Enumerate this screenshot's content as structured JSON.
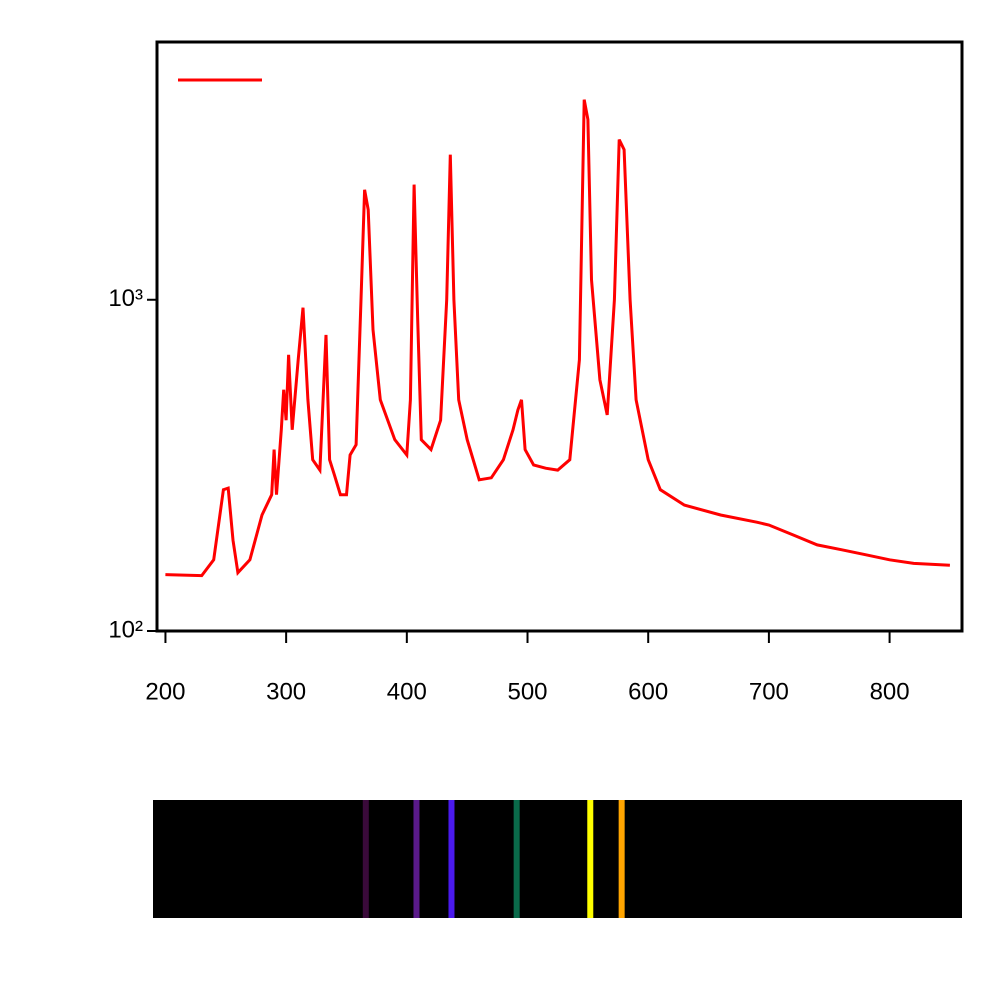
{
  "chart_data": {
    "type": "line",
    "x": [
      200,
      230,
      240,
      248,
      252,
      256,
      260,
      270,
      280,
      288,
      290,
      292,
      296,
      298,
      300,
      302,
      305,
      310,
      314,
      318,
      322,
      328,
      333,
      336,
      340,
      345,
      350,
      353,
      358,
      362,
      365,
      368,
      372,
      378,
      390,
      400,
      403,
      406,
      409,
      412,
      420,
      428,
      433,
      436,
      439,
      443,
      450,
      460,
      470,
      480,
      488,
      492,
      495,
      498,
      505,
      515,
      525,
      535,
      543,
      547,
      550,
      553,
      560,
      566,
      572,
      576,
      580,
      585,
      590,
      600,
      610,
      630,
      660,
      690,
      700,
      720,
      740,
      760,
      780,
      800,
      820,
      850
    ],
    "series": [
      {
        "color": "#ff0000",
        "values": [
          148,
          147,
          164,
          267,
          270,
          188,
          150,
          164,
          224,
          258,
          353,
          258,
          405,
          535,
          433,
          682,
          405,
          659,
          946,
          499,
          329,
          306,
          783,
          329,
          296,
          258,
          258,
          340,
          365,
          1000,
          2148,
          1870,
          812,
          499,
          378,
          340,
          499,
          2226,
          870,
          378,
          353,
          433,
          1000,
          2742,
          1000,
          499,
          378,
          286,
          290,
          329,
          405,
          465,
          499,
          353,
          317,
          310,
          306,
          329,
          659,
          4020,
          3500,
          1149,
          573,
          449,
          1000,
          3044,
          2840,
          1000,
          499,
          329,
          267,
          240,
          224,
          213,
          209,
          195,
          182,
          176,
          170,
          164,
          160,
          158
        ]
      }
    ],
    "xlim": [
      193,
      860
    ],
    "ylim": [
      100,
      6000
    ],
    "log_y": true,
    "xticks": [
      200,
      300,
      400,
      500,
      600,
      700,
      800
    ],
    "yticks": [
      {
        "value": 100,
        "label": "10²"
      },
      {
        "value": 1000,
        "label": "10³"
      }
    ],
    "emission_lines": [
      {
        "x": 366,
        "color": "#3a0a3a"
      },
      {
        "x": 408,
        "color": "#5a1a8a"
      },
      {
        "x": 437,
        "color": "#4a1aee"
      },
      {
        "x": 491,
        "color": "#0a6a4a"
      },
      {
        "x": 552,
        "color": "#ffff00"
      },
      {
        "x": 578,
        "color": "#ffa500"
      }
    ]
  }
}
